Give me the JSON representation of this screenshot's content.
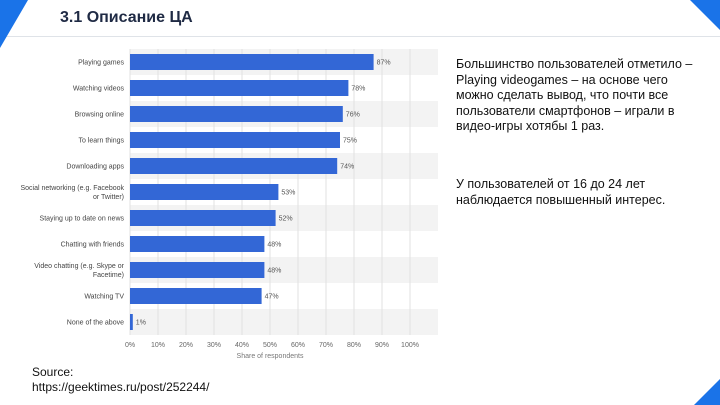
{
  "header": {
    "title": "3.1 Описание ЦА"
  },
  "description": {
    "paragraphs": [
      "Большинство пользователей отметило – Playing videogames – на основе чего можно сделать вывод, что почти все пользователи смартфонов – играли в видео-игры хотябы 1 раз.",
      "У пользователей от 16 до 24 лет наблюдается повышенный интерес."
    ]
  },
  "source": {
    "label": "Source:",
    "url": "https://geektimes.ru/post/252244/"
  },
  "colors": {
    "accent": "#1a73e8",
    "bar": "#3367d6",
    "stripe": "#f3f3f3",
    "grid": "#e0e0e0"
  },
  "chart_data": {
    "type": "bar",
    "orientation": "horizontal",
    "categories": [
      "Playing games",
      "Watching videos",
      "Browsing online",
      "To learn things",
      "Downloading apps",
      "Social networking (e.g. Facebook or Twitter)",
      "Staying up to date on news",
      "Chatting with friends",
      "Video chatting (e.g. Skype or Facetime)",
      "Watching TV",
      "None of the above"
    ],
    "values": [
      87,
      78,
      76,
      75,
      74,
      53,
      52,
      48,
      48,
      47,
      1
    ],
    "value_labels": [
      "87%",
      "78%",
      "76%",
      "75%",
      "74%",
      "53%",
      "52%",
      "48%",
      "48%",
      "47%",
      "1%"
    ],
    "xticks": [
      "0%",
      "10%",
      "20%",
      "30%",
      "40%",
      "50%",
      "60%",
      "70%",
      "80%",
      "90%",
      "100%"
    ],
    "xlim": [
      0,
      100
    ],
    "xlabel": "Share of respondents",
    "grid": true
  }
}
